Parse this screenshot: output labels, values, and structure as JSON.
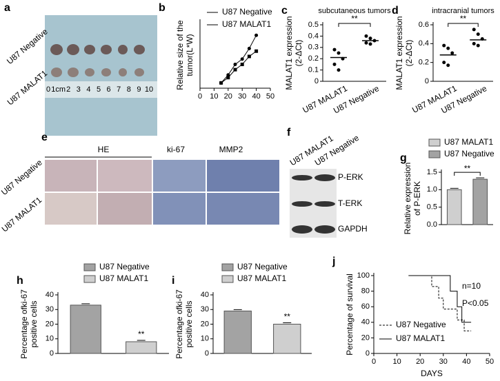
{
  "panel_a": {
    "label": "a",
    "rows": [
      "U87 Negative",
      "U87 MALAT1"
    ],
    "ruler": [
      "0",
      "1cm",
      "2",
      "3",
      "4",
      "5",
      "6",
      "7",
      "8",
      "9",
      "10"
    ]
  },
  "panel_e": {
    "label": "e",
    "columns": [
      "HE",
      "ki-67",
      "MMP2"
    ],
    "rows": [
      "U87 Negative",
      "U87 MALAT1"
    ]
  },
  "panel_f": {
    "label": "f",
    "lanes": [
      "U87 MALAT1",
      "U87 Negative"
    ],
    "bands": [
      "P-ERK",
      "T-ERK",
      "GAPDH"
    ]
  },
  "chart_data": [
    {
      "panel": "b",
      "type": "line",
      "ylabel": [
        "Relative size of the",
        "tumor(L*W)"
      ],
      "x": [
        15,
        20,
        25,
        30,
        35,
        40
      ],
      "xlim": [
        0,
        50
      ],
      "xticks": [
        0,
        10,
        20,
        30,
        40,
        50
      ],
      "ylim": [
        0,
        2.5
      ],
      "series": [
        {
          "name": "U87 Negative",
          "color": "#000000",
          "marker": "circle",
          "values": [
            0.2,
            0.5,
            0.9,
            1.1,
            1.5,
            2.0
          ]
        },
        {
          "name": "U87 MALAT1",
          "color": "#000000",
          "marker": "square",
          "values": [
            0.2,
            0.4,
            0.7,
            0.9,
            1.2,
            1.4
          ]
        }
      ]
    },
    {
      "panel": "c",
      "type": "dot",
      "title": "subcutaneous tumors",
      "ylabel": [
        "MALAT1 expression",
        "(2-ΔCt)"
      ],
      "categories": [
        "U87 MALAT1",
        "U87 Negative"
      ],
      "points": [
        [
          0.28,
          0.25,
          0.2,
          0.15,
          0.1
        ],
        [
          0.4,
          0.38,
          0.36,
          0.34,
          0.33
        ]
      ],
      "means": [
        0.21,
        0.36
      ],
      "annotation": "**",
      "ylim": [
        0,
        0.5
      ],
      "yticks": [
        0,
        0.1,
        0.2,
        0.3,
        0.4,
        0.5
      ]
    },
    {
      "panel": "d",
      "type": "dot",
      "title": "intracranial tumors",
      "ylabel": [
        "MALAT1 expression",
        "(2-ΔCt)"
      ],
      "categories": [
        "U87 MALAT1",
        "U87 Negative"
      ],
      "points": [
        [
          0.38,
          0.35,
          0.3,
          0.2,
          0.17
        ],
        [
          0.55,
          0.5,
          0.45,
          0.4,
          0.38
        ]
      ],
      "means": [
        0.28,
        0.44
      ],
      "annotation": "**",
      "ylim": [
        0,
        0.6
      ],
      "yticks": [
        0,
        0.2,
        0.4,
        0.6
      ]
    },
    {
      "panel": "g",
      "type": "bar",
      "ylabel": [
        "Relative expression",
        "of P-ERK"
      ],
      "annotation": "**",
      "ylim": [
        0,
        1.5
      ],
      "yticks": [
        {
          "value": 0,
          "label": "0.0"
        },
        0.5,
        {
          "value": 1,
          "label": "1.0"
        },
        1.5
      ],
      "series": [
        {
          "name": "U87 MALAT1",
          "color": "#cfcfcf",
          "values": [
            1.0
          ]
        },
        {
          "name": "U87 Negative",
          "color": "#a3a3a3",
          "values": [
            1.3
          ]
        }
      ]
    },
    {
      "panel": "h",
      "type": "bar",
      "ylabel": [
        "Percentage ofki-67",
        "positive cells"
      ],
      "annotation": "**",
      "ylim": [
        0,
        40
      ],
      "yticks": [
        0,
        10,
        20,
        30,
        40
      ],
      "series": [
        {
          "name": "U87 Negative",
          "color": "#a3a3a3",
          "values": [
            33
          ]
        },
        {
          "name": "U87 MALAT1",
          "color": "#cfcfcf",
          "values": [
            8
          ]
        }
      ]
    },
    {
      "panel": "i",
      "type": "bar",
      "ylabel": [
        "Percentage ofki-67",
        "positive cells"
      ],
      "annotation": "**",
      "ylim": [
        0,
        40
      ],
      "yticks": [
        0,
        10,
        20,
        30,
        40
      ],
      "series": [
        {
          "name": "U87 Negative",
          "color": "#a3a3a3",
          "values": [
            29
          ]
        },
        {
          "name": "U87 MALAT1",
          "color": "#cfcfcf",
          "values": [
            20
          ]
        }
      ]
    },
    {
      "panel": "j",
      "type": "step",
      "xlabel": "DAYS",
      "ylabel": [
        "Percentage of survival"
      ],
      "annotations": [
        "n=10",
        "P<0.05"
      ],
      "xlim": [
        0,
        50
      ],
      "xticks": [
        0,
        10,
        20,
        30,
        40,
        50
      ],
      "ylim": [
        0,
        100
      ],
      "yticks": [
        0,
        20,
        40,
        60,
        80,
        100
      ],
      "series": [
        {
          "name": "U87 Negative",
          "color": "#000000",
          "linestyle": "dashed",
          "x": [
            15,
            25,
            25,
            28,
            28,
            30,
            30,
            36,
            36,
            39,
            39,
            42
          ],
          "values": [
            100,
            100,
            86,
            86,
            71,
            71,
            57,
            57,
            43,
            43,
            29,
            29
          ]
        },
        {
          "name": "U87 MALAT1",
          "color": "#000000",
          "linestyle": "solid",
          "x": [
            15,
            33,
            33,
            36,
            36,
            38,
            38,
            42
          ],
          "values": [
            100,
            100,
            80,
            80,
            60,
            60,
            40,
            40
          ]
        }
      ]
    }
  ]
}
